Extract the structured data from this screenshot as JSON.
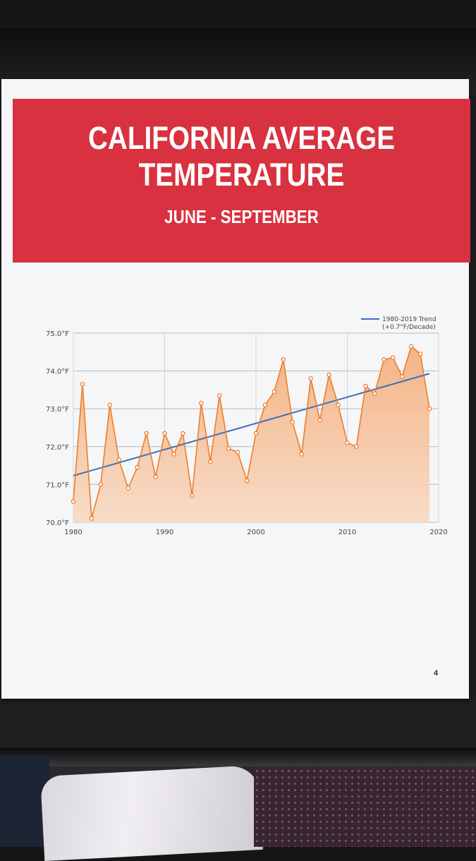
{
  "header": {
    "title": "CALIFORNIA AVERAGE\nTEMPERATURE",
    "subtitle": "JUNE - SEPTEMBER"
  },
  "page_number": "4",
  "colors": {
    "banner": "#d8313f",
    "series_line": "#f07c2b",
    "fill_top": "#f4b07f",
    "fill_bottom": "#f8d9c2",
    "trend": "#3e6fbb",
    "page": "#f4f6f7"
  },
  "chart_data": {
    "type": "line",
    "title": "",
    "xlabel": "",
    "ylabel": "",
    "xlim": [
      1980,
      2020
    ],
    "ylim": [
      70.0,
      75.0
    ],
    "x_ticks": [
      1980,
      1990,
      2000,
      2010,
      2020
    ],
    "y_ticks": [
      70.0,
      71.0,
      72.0,
      73.0,
      74.0,
      75.0
    ],
    "y_tick_labels": [
      "70.0°F",
      "71.0°F",
      "72.0°F",
      "73.0°F",
      "74.0°F",
      "75.0°F"
    ],
    "grid": "horizontal",
    "legend": {
      "position": "top-right",
      "entries": [
        {
          "label_line1": "1980-2019 Trend",
          "label_line2": "(+0.7°F/Decade)"
        }
      ]
    },
    "series": [
      {
        "x": [
          1980,
          1981,
          1982,
          1983,
          1984,
          1985,
          1986,
          1987,
          1988,
          1989,
          1990,
          1991,
          1992,
          1993,
          1994,
          1995,
          1996,
          1997,
          1998,
          1999,
          2000,
          2001,
          2002,
          2003,
          2004,
          2005,
          2006,
          2007,
          2008,
          2009,
          2010,
          2011,
          2012,
          2013,
          2014,
          2015,
          2016,
          2017,
          2018,
          2019
        ],
        "values": [
          70.55,
          73.65,
          70.1,
          71.0,
          73.1,
          71.65,
          70.9,
          71.45,
          72.35,
          71.2,
          72.35,
          71.8,
          72.35,
          70.7,
          73.15,
          71.6,
          73.35,
          71.95,
          71.85,
          71.1,
          72.35,
          73.1,
          73.45,
          74.3,
          72.65,
          71.8,
          73.8,
          72.7,
          73.9,
          73.1,
          72.1,
          72.0,
          73.6,
          73.4,
          74.3,
          74.35,
          73.85,
          74.65,
          74.45,
          73.0
        ]
      }
    ],
    "trend": {
      "x": [
        1980,
        2019
      ],
      "values": [
        71.23,
        73.93
      ]
    }
  }
}
